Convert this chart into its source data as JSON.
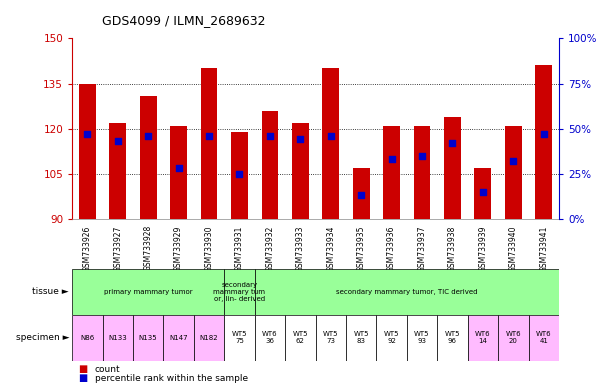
{
  "title": "GDS4099 / ILMN_2689632",
  "samples": [
    "GSM733926",
    "GSM733927",
    "GSM733928",
    "GSM733929",
    "GSM733930",
    "GSM733931",
    "GSM733932",
    "GSM733933",
    "GSM733934",
    "GSM733935",
    "GSM733936",
    "GSM733937",
    "GSM733938",
    "GSM733939",
    "GSM733940",
    "GSM733941"
  ],
  "bar_heights": [
    135,
    122,
    131,
    121,
    140,
    119,
    126,
    122,
    140,
    107,
    121,
    121,
    124,
    107,
    121,
    141
  ],
  "percentile_ranks": [
    47,
    43,
    46,
    28,
    46,
    25,
    46,
    44,
    46,
    13,
    33,
    35,
    42,
    15,
    32,
    47
  ],
  "y_min": 90,
  "y_max": 150,
  "y_ticks": [
    90,
    105,
    120,
    135,
    150
  ],
  "right_y_ticks": [
    0,
    25,
    50,
    75,
    100
  ],
  "right_y_labels": [
    "0%",
    "25%",
    "50%",
    "75%",
    "100%"
  ],
  "bar_color": "#cc0000",
  "dot_color": "#0000cc",
  "background_color": "#ffffff",
  "left_axis_color": "#cc0000",
  "right_axis_color": "#0000cc",
  "tissue_groups": [
    {
      "text": "primary mammary tumor",
      "start": 0,
      "end": 4,
      "color": "#99ff99"
    },
    {
      "text": "secondary\nmammary tum\nor, lin- derived",
      "start": 5,
      "end": 5,
      "color": "#99ff99"
    },
    {
      "text": "secondary mammary tumor, TIC derived",
      "start": 6,
      "end": 15,
      "color": "#99ff99"
    }
  ],
  "specimen_labels": [
    {
      "text": "N86",
      "start": 0,
      "end": 0,
      "color": "#ffbbff"
    },
    {
      "text": "N133",
      "start": 1,
      "end": 1,
      "color": "#ffbbff"
    },
    {
      "text": "N135",
      "start": 2,
      "end": 2,
      "color": "#ffbbff"
    },
    {
      "text": "N147",
      "start": 3,
      "end": 3,
      "color": "#ffbbff"
    },
    {
      "text": "N182",
      "start": 4,
      "end": 4,
      "color": "#ffbbff"
    },
    {
      "text": "WT5\n75",
      "start": 5,
      "end": 5,
      "color": "#ffffff"
    },
    {
      "text": "WT6\n36",
      "start": 6,
      "end": 6,
      "color": "#ffffff"
    },
    {
      "text": "WT5\n62",
      "start": 7,
      "end": 7,
      "color": "#ffffff"
    },
    {
      "text": "WT5\n73",
      "start": 8,
      "end": 8,
      "color": "#ffffff"
    },
    {
      "text": "WT5\n83",
      "start": 9,
      "end": 9,
      "color": "#ffffff"
    },
    {
      "text": "WT5\n92",
      "start": 10,
      "end": 10,
      "color": "#ffffff"
    },
    {
      "text": "WT5\n93",
      "start": 11,
      "end": 11,
      "color": "#ffffff"
    },
    {
      "text": "WT5\n96",
      "start": 12,
      "end": 12,
      "color": "#ffffff"
    },
    {
      "text": "WT6\n14",
      "start": 13,
      "end": 13,
      "color": "#ffbbff"
    },
    {
      "text": "WT6\n20",
      "start": 14,
      "end": 14,
      "color": "#ffbbff"
    },
    {
      "text": "WT6\n41",
      "start": 15,
      "end": 15,
      "color": "#ffbbff"
    }
  ],
  "dotted_lines": [
    105,
    120,
    135
  ],
  "legend": [
    {
      "label": "count",
      "color": "#cc0000"
    },
    {
      "label": "percentile rank within the sample",
      "color": "#0000cc"
    }
  ]
}
